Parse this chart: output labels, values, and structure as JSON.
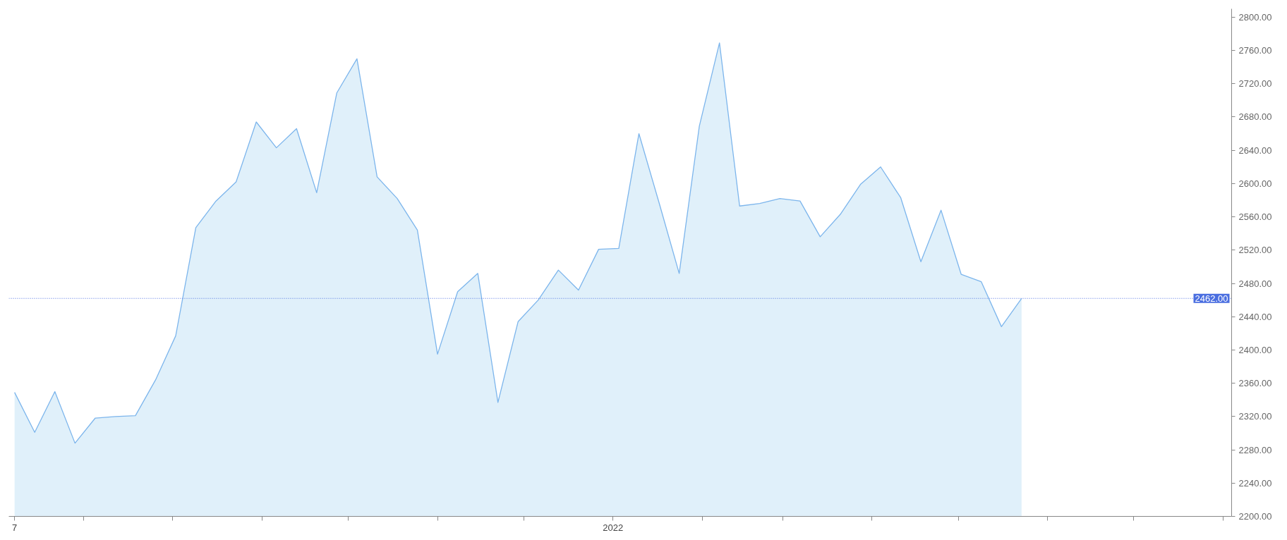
{
  "chart_data": {
    "type": "area",
    "x": [
      "2021-06-07",
      "2021-06-14",
      "2021-06-21",
      "2021-06-28",
      "2021-07-05",
      "2021-07-12",
      "2021-07-19",
      "2021-07-26",
      "2021-08-02",
      "2021-08-09",
      "2021-08-16",
      "2021-08-23",
      "2021-08-30",
      "2021-09-06",
      "2021-09-13",
      "2021-09-20",
      "2021-09-27",
      "2021-10-04",
      "2021-10-11",
      "2021-10-18",
      "2021-10-25",
      "2021-11-01",
      "2021-11-08",
      "2021-11-15",
      "2021-11-22",
      "2021-11-29",
      "2021-12-06",
      "2021-12-13",
      "2021-12-20",
      "2021-12-27",
      "2022-01-03",
      "2022-01-10",
      "2022-01-17",
      "2022-01-24",
      "2022-01-31",
      "2022-02-07",
      "2022-02-14",
      "2022-02-21",
      "2022-02-28",
      "2022-03-07",
      "2022-03-14",
      "2022-03-21",
      "2022-03-28",
      "2022-04-04",
      "2022-04-11",
      "2022-04-18",
      "2022-04-25",
      "2022-05-02",
      "2022-05-09",
      "2022-05-16",
      "2022-05-23"
    ],
    "series": [
      {
        "color": "#7cb5ec",
        "values": [
          2349,
          2301,
          2350,
          2288,
          2318,
          2320,
          2321,
          2364,
          2417,
          2547,
          2579,
          2602,
          2674,
          2643,
          2666,
          2589,
          2709,
          2750,
          2608,
          2582,
          2544,
          2395,
          2470,
          2492,
          2337,
          2434,
          2460,
          2496,
          2472,
          2521,
          2522,
          2660,
          2577,
          2492,
          2669,
          2769,
          2573,
          2576,
          2582,
          2579,
          2536,
          2563,
          2599,
          2620,
          2583,
          2506,
          2568,
          2491,
          2482,
          2428,
          2462
        ]
      }
    ],
    "xlim": [
      "2021-06-05",
      "2022-08-04"
    ],
    "xticks": [
      {
        "value": "2021-06-07",
        "label": "7"
      },
      {
        "value": "2021-07-01",
        "label": null
      },
      {
        "value": "2021-08-01",
        "label": null
      },
      {
        "value": "2021-09-01",
        "label": null
      },
      {
        "value": "2021-10-01",
        "label": null
      },
      {
        "value": "2021-11-01",
        "label": null
      },
      {
        "value": "2021-12-01",
        "label": null
      },
      {
        "value": "2022-01-01",
        "label": "2022"
      },
      {
        "value": "2022-02-01",
        "label": null
      },
      {
        "value": "2022-03-01",
        "label": null
      },
      {
        "value": "2022-04-01",
        "label": null
      },
      {
        "value": "2022-05-01",
        "label": null
      },
      {
        "value": "2022-06-01",
        "label": null
      },
      {
        "value": "2022-07-01",
        "label": null
      },
      {
        "value": "2022-08-01",
        "label": null
      }
    ],
    "ylim": [
      2200,
      2810
    ],
    "yticks": [
      {
        "value": 2200,
        "label": "2200.00"
      },
      {
        "value": 2240,
        "label": "2240.00"
      },
      {
        "value": 2280,
        "label": "2280.00"
      },
      {
        "value": 2320,
        "label": "2320.00"
      },
      {
        "value": 2360,
        "label": "2360.00"
      },
      {
        "value": 2400,
        "label": "2400.00"
      },
      {
        "value": 2440,
        "label": "2440.00"
      },
      {
        "value": 2480,
        "label": "2480.00"
      },
      {
        "value": 2520,
        "label": "2520.00"
      },
      {
        "value": 2560,
        "label": "2560.00"
      },
      {
        "value": 2600,
        "label": "2600.00"
      },
      {
        "value": 2640,
        "label": "2640.00"
      },
      {
        "value": 2680,
        "label": "2680.00"
      },
      {
        "value": 2720,
        "label": "2720.00"
      },
      {
        "value": 2760,
        "label": "2760.00"
      },
      {
        "value": 2800,
        "label": "2800.00"
      }
    ],
    "ref_lines": [
      {
        "axis": "y",
        "value": 2462,
        "label": "2462.00",
        "color": "#4a6ee0",
        "line_style": "dotted"
      }
    ],
    "grid": false
  }
}
